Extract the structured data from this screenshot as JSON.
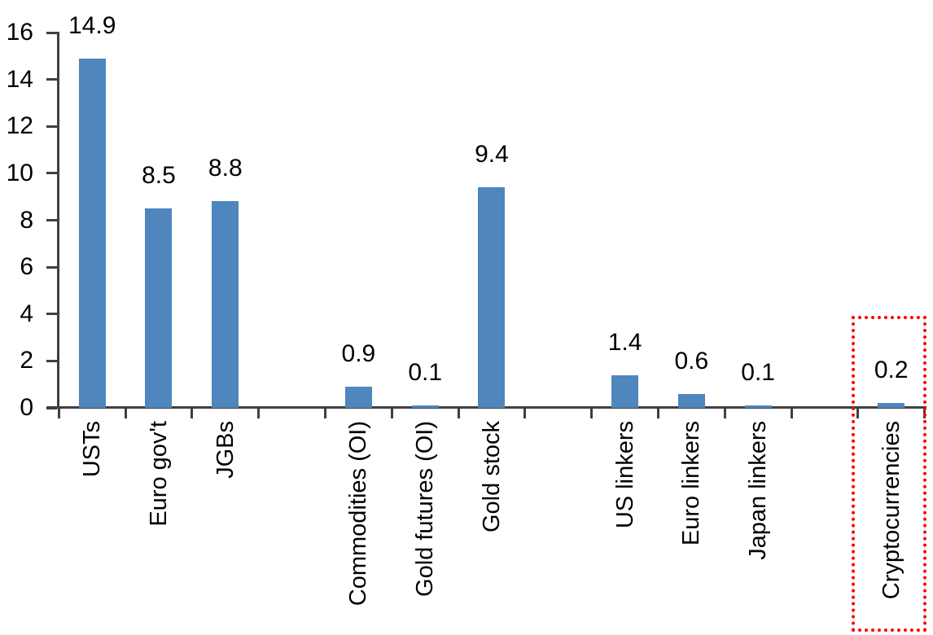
{
  "chart_data": {
    "type": "bar",
    "title": "",
    "xlabel": "",
    "ylabel": "",
    "categories": [
      "USTs",
      "Euro gov't",
      "JGBs",
      "",
      "Commodities (OI)",
      "Gold futures (OI)",
      "Gold stock",
      "",
      "US linkers",
      "Euro linkers",
      "Japan linkers",
      "",
      "Cryptocurrencies"
    ],
    "values": [
      14.9,
      8.5,
      8.8,
      null,
      0.9,
      0.1,
      9.4,
      null,
      1.4,
      0.6,
      0.1,
      null,
      0.2
    ],
    "value_labels": [
      "14.9",
      "8.5",
      "8.8",
      "",
      "0.9",
      "0.1",
      "9.4",
      "",
      "1.4",
      "0.6",
      "0.1",
      "",
      "0.2"
    ],
    "ylim": [
      0,
      16
    ],
    "yticks": [
      0,
      2,
      4,
      6,
      8,
      10,
      12,
      14,
      16
    ],
    "grid": false,
    "legend": false,
    "bar_color": "#4e86bd",
    "axis_color": "#404040",
    "text_color": "#000000",
    "highlight": {
      "category": "Cryptocurrencies",
      "shape": "dotted-rectangle",
      "color": "#ff0000"
    }
  }
}
